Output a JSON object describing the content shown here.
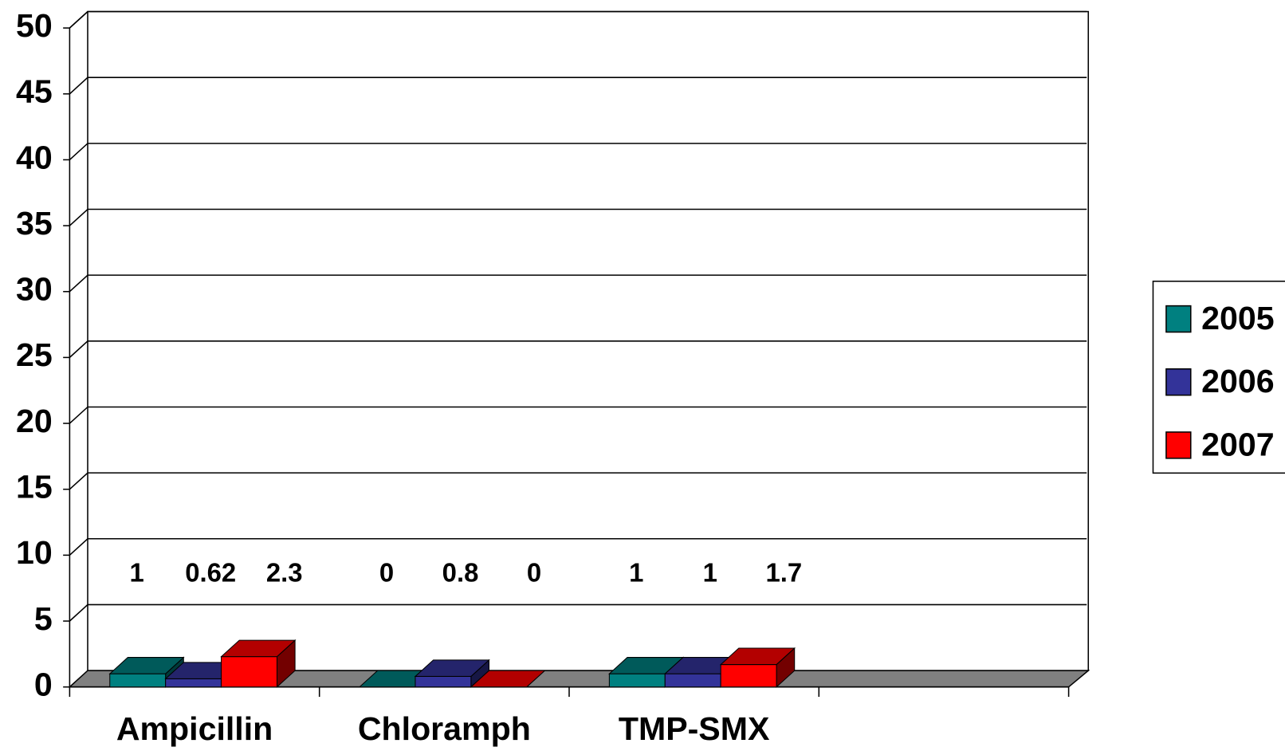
{
  "chart_data": {
    "type": "bar3d",
    "categories": [
      "Ampicillin",
      "Chloramph",
      "TMP-SMX",
      null
    ],
    "series": [
      {
        "name": "2005",
        "color": "#008080",
        "values": [
          1,
          0,
          1,
          null
        ]
      },
      {
        "name": "2006",
        "color": "#333399",
        "values": [
          0.62,
          0.8,
          1,
          null
        ]
      },
      {
        "name": "2007",
        "color": "#ff0000",
        "values": [
          2.3,
          0,
          1.7,
          null
        ]
      }
    ],
    "ylim": [
      0,
      50
    ],
    "yticks": [
      0,
      5,
      10,
      15,
      20,
      25,
      30,
      35,
      40,
      45,
      50
    ],
    "grid": true,
    "legend": "right"
  }
}
